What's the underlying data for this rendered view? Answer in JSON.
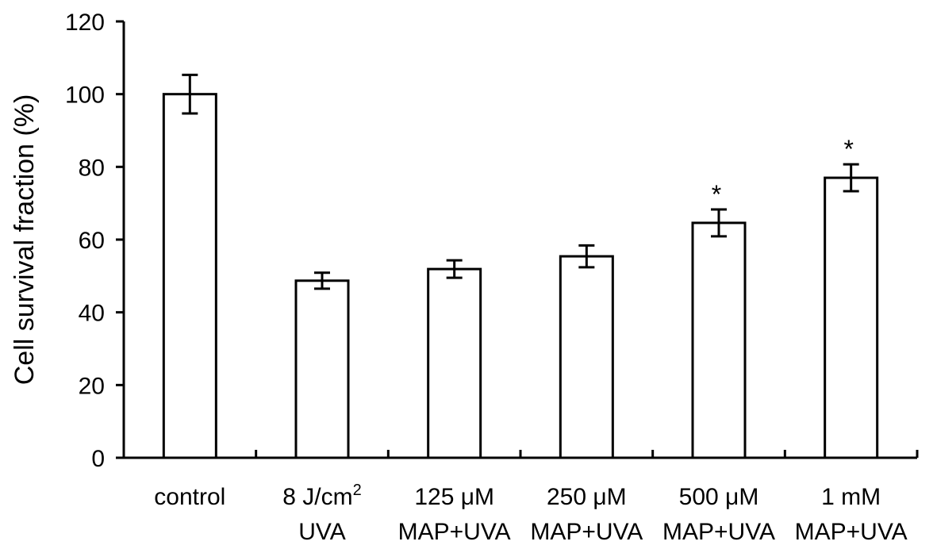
{
  "chart_data": {
    "type": "bar",
    "title": "",
    "xlabel": "",
    "ylabel": "Cell survival fraction (%)",
    "ylim": [
      0,
      120
    ],
    "yticks": [
      0,
      20,
      40,
      60,
      80,
      100,
      120
    ],
    "grid": false,
    "categories": [
      {
        "line1": "control",
        "line2": ""
      },
      {
        "line1": "8 J/cm",
        "sup": "2",
        "line2": "UVA"
      },
      {
        "line1": "125 μM",
        "line2": "MAP+UVA"
      },
      {
        "line1": "250 μM",
        "line2": "MAP+UVA"
      },
      {
        "line1": "500 μM",
        "line2": "MAP+UVA"
      },
      {
        "line1": "1 mM",
        "line2": "MAP+UVA"
      }
    ],
    "values": [
      100,
      48.7,
      51.9,
      55.4,
      64.6,
      77.0
    ],
    "errors": [
      5.3,
      2.2,
      2.4,
      3.0,
      3.7,
      3.7
    ],
    "significance": [
      "",
      "",
      "",
      "",
      "*",
      "*"
    ],
    "colors": {
      "bar_fill": "#ffffff",
      "stroke": "#000000"
    }
  }
}
